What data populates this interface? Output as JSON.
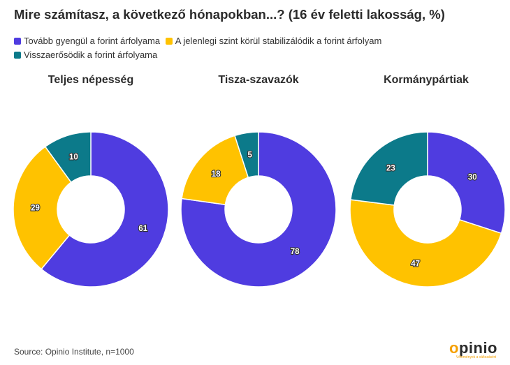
{
  "title": "Mire számítasz, a következő hónapokban...? (16 év feletti lakosság, %)",
  "colors": {
    "purple": "#4f3ce0",
    "yellow": "#ffc200",
    "teal": "#0c7a8a"
  },
  "legend": [
    {
      "label": "Tovább gyengül a forint árfolyama",
      "color": "#4f3ce0"
    },
    {
      "label": "A jelenlegi szint körül stabilizálódik a forint árfolyam",
      "color": "#ffc200"
    },
    {
      "label": "Visszaerősödik a forint árfolyama",
      "color": "#0c7a8a"
    }
  ],
  "chart_data": [
    {
      "type": "pie",
      "title": "Teljes népesség",
      "categories": [
        "Tovább gyengül a forint árfolyama",
        "A jelenlegi szint körül stabilizálódik a forint árfolyam",
        "Visszaerősödik a forint árfolyama"
      ],
      "values": [
        61,
        29,
        10
      ]
    },
    {
      "type": "pie",
      "title": "Tisza-szavazók",
      "categories": [
        "Tovább gyengül a forint árfolyama",
        "A jelenlegi szint körül stabilizálódik a forint árfolyam",
        "Visszaerősödik a forint árfolyama"
      ],
      "values": [
        78,
        18,
        5
      ]
    },
    {
      "type": "pie",
      "title": "Kormánypártiak",
      "categories": [
        "Tovább gyengül a forint árfolyama",
        "A jelenlegi szint körül stabilizálódik a forint árfolyam",
        "Visszaerősödik a forint árfolyama"
      ],
      "values": [
        30,
        47,
        23
      ]
    }
  ],
  "source": "Source: Opinio Institute, n=1000",
  "logo": {
    "first": "o",
    "rest": "pinio",
    "tagline": "Vélemények a változásért"
  }
}
